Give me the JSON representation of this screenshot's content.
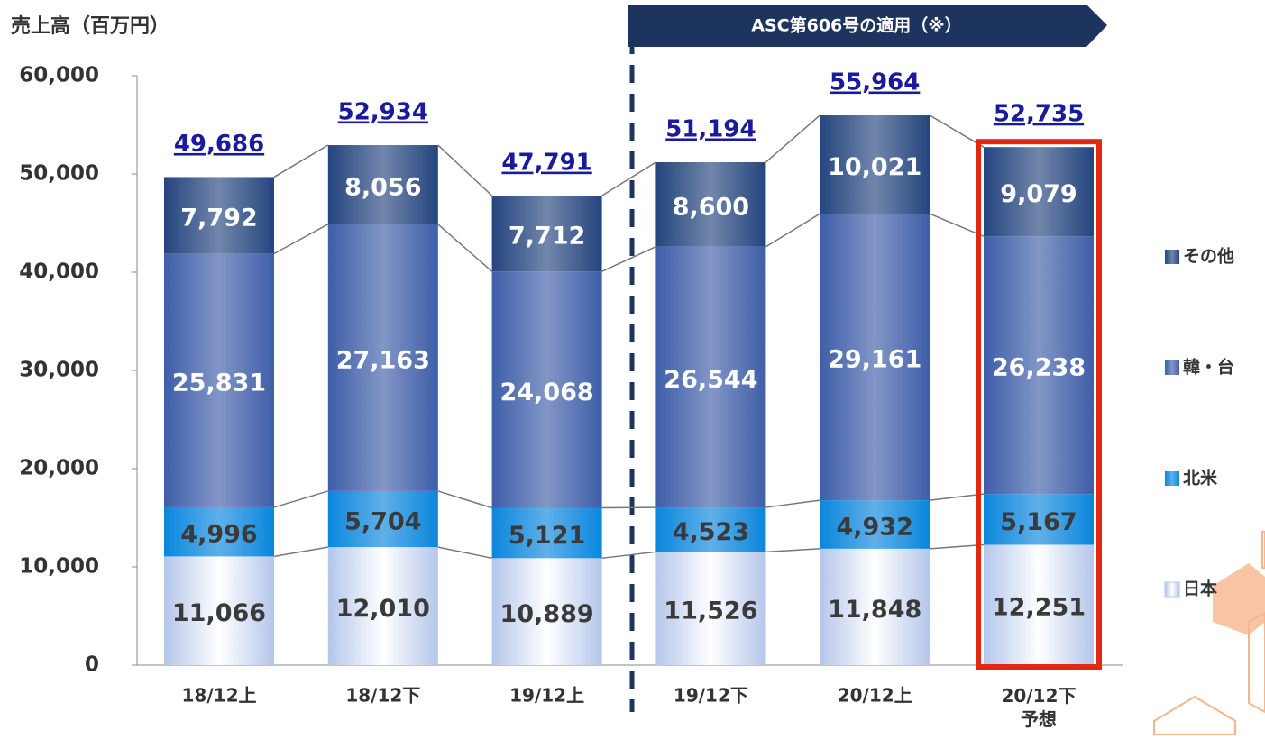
{
  "chart_data": {
    "type": "stacked-bar",
    "y_axis_title": "売上高（百万円）",
    "banner": "ASC第606号の適用（※）",
    "categories": [
      "18/12上",
      "18/12下",
      "19/12上",
      "19/12下",
      "20/12上",
      "20/12下\n予想"
    ],
    "series": [
      {
        "name": "日本",
        "color": "#b4c6ea",
        "values": [
          11066,
          12010,
          10889,
          11526,
          11848,
          12251
        ],
        "value_labels": [
          "11,066",
          "12,010",
          "10,889",
          "11,526",
          "11,848",
          "12,251"
        ]
      },
      {
        "name": "北米",
        "color": "#0a86dc",
        "values": [
          4996,
          5704,
          5121,
          4523,
          4932,
          5167
        ],
        "value_labels": [
          "4,996",
          "5,704",
          "5,121",
          "4,523",
          "4,932",
          "5,167"
        ]
      },
      {
        "name": "韓・台",
        "color": "#3e5ea8",
        "values": [
          25831,
          27163,
          24068,
          26544,
          29161,
          26238
        ],
        "value_labels": [
          "25,831",
          "27,163",
          "24,068",
          "26,544",
          "29,161",
          "26,238"
        ]
      },
      {
        "name": "その他",
        "color": "#24457e",
        "values": [
          7792,
          8056,
          7712,
          8600,
          10021,
          9079
        ],
        "value_labels": [
          "7,792",
          "8,056",
          "7,712",
          "8,600",
          "10,021",
          "9,079"
        ]
      }
    ],
    "totals": [
      49686,
      52934,
      47791,
      51194,
      55964,
      52735
    ],
    "total_labels": [
      "49,686",
      "52,934",
      "47,791",
      "51,194",
      "55,964",
      "52,735"
    ],
    "ylim": [
      0,
      60000
    ],
    "yticks": [
      0,
      {
        "value": 10000,
        "label": "10,000"
      },
      {
        "value": 20000,
        "label": "20,000"
      },
      {
        "value": 30000,
        "label": "30,000"
      },
      {
        "value": 40000,
        "label": "40,000"
      },
      {
        "value": 50000,
        "label": "50,000"
      },
      {
        "value": 60000,
        "label": "60,000"
      }
    ],
    "highlight_color": "#e02a10"
  }
}
